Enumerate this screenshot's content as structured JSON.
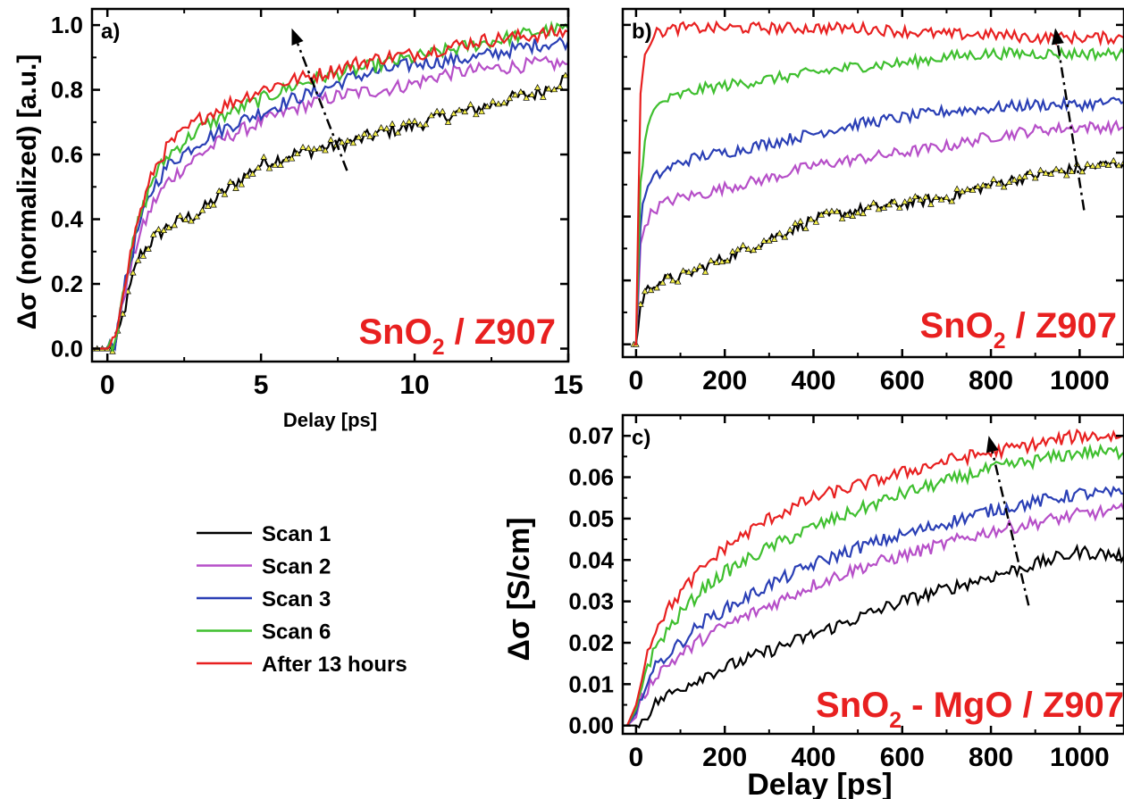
{
  "chart_data": [
    {
      "type": "line",
      "panel_label": "a)",
      "xlabel": "Delay [ps]",
      "ylabel": "Δσ  (normalized) [a.u.]",
      "xlim": [
        -0.5,
        15
      ],
      "ylim": [
        -0.04,
        1.05
      ],
      "xticks": [
        0,
        5,
        10,
        15
      ],
      "yticks": [
        0.0,
        0.2,
        0.4,
        0.6,
        0.8,
        1.0
      ],
      "xtick_labels": [
        "0",
        "5",
        "10",
        "15"
      ],
      "ytick_labels": [
        "0.0",
        "0.2",
        "0.4",
        "0.6",
        "0.8",
        "1.0"
      ],
      "annotation": {
        "main": "SnO",
        "sub": "2",
        "rest": " / Z907"
      },
      "arrow": {
        "from": [
          7.8,
          0.55
        ],
        "to": [
          6.0,
          0.99
        ]
      },
      "x": [
        -0.5,
        0,
        0.25,
        0.5,
        1,
        1.5,
        2,
        3,
        4,
        5,
        6,
        7,
        8,
        9,
        10,
        11,
        12,
        13,
        14,
        15
      ],
      "series": [
        {
          "name": "Scan 1",
          "color": "#000000",
          "markers": true,
          "values": [
            0.0,
            0.0,
            0.0,
            0.1,
            0.28,
            0.34,
            0.38,
            0.42,
            0.5,
            0.57,
            0.6,
            0.62,
            0.64,
            0.67,
            0.69,
            0.72,
            0.74,
            0.77,
            0.79,
            0.84
          ]
        },
        {
          "name": "Scan 2",
          "color": "#b64fc8",
          "markers": false,
          "values": [
            0.0,
            0.0,
            0.02,
            0.15,
            0.34,
            0.45,
            0.52,
            0.6,
            0.66,
            0.7,
            0.74,
            0.77,
            0.79,
            0.8,
            0.82,
            0.85,
            0.86,
            0.87,
            0.88,
            0.88
          ]
        },
        {
          "name": "Scan 3",
          "color": "#2a3fb5",
          "markers": false,
          "values": [
            0.0,
            0.0,
            0.02,
            0.17,
            0.37,
            0.5,
            0.57,
            0.64,
            0.69,
            0.73,
            0.77,
            0.8,
            0.84,
            0.86,
            0.88,
            0.89,
            0.9,
            0.92,
            0.94,
            0.95
          ]
        },
        {
          "name": "Scan 6",
          "color": "#3fbf2f",
          "markers": false,
          "values": [
            0.0,
            0.0,
            0.02,
            0.18,
            0.39,
            0.53,
            0.6,
            0.68,
            0.73,
            0.77,
            0.81,
            0.84,
            0.86,
            0.88,
            0.9,
            0.92,
            0.94,
            0.96,
            0.98,
            0.99
          ]
        },
        {
          "name": "After 13 hours",
          "color": "#e82020",
          "markers": false,
          "values": [
            0.0,
            0.0,
            0.02,
            0.18,
            0.4,
            0.55,
            0.63,
            0.71,
            0.76,
            0.8,
            0.83,
            0.85,
            0.88,
            0.9,
            0.91,
            0.93,
            0.95,
            0.96,
            0.97,
            0.98
          ]
        }
      ]
    },
    {
      "type": "line",
      "panel_label": "b)",
      "xlabel": "",
      "ylabel": "",
      "xlim": [
        -30,
        1100
      ],
      "ylim": [
        -0.04,
        1.05
      ],
      "xticks": [
        0,
        200,
        400,
        600,
        800,
        1000
      ],
      "xtick_labels": [
        "0",
        "200",
        "400",
        "600",
        "800",
        "1000"
      ],
      "annotation": {
        "main": "SnO",
        "sub": "2",
        "rest": " / Z907"
      },
      "arrow": {
        "from": [
          1010,
          0.42
        ],
        "to": [
          945,
          0.99
        ]
      },
      "x": [
        -5,
        0,
        10,
        20,
        40,
        60,
        100,
        150,
        200,
        300,
        400,
        500,
        600,
        700,
        800,
        900,
        1000,
        1100
      ],
      "series": [
        {
          "name": "Scan 1",
          "color": "#000000",
          "markers": true,
          "values": [
            0.0,
            0.0,
            0.12,
            0.16,
            0.19,
            0.2,
            0.21,
            0.24,
            0.27,
            0.33,
            0.39,
            0.42,
            0.44,
            0.46,
            0.5,
            0.53,
            0.55,
            0.57
          ]
        },
        {
          "name": "Scan 2",
          "color": "#b64fc8",
          "markers": false,
          "values": [
            0.0,
            0.0,
            0.3,
            0.38,
            0.42,
            0.44,
            0.46,
            0.47,
            0.49,
            0.52,
            0.56,
            0.58,
            0.6,
            0.62,
            0.65,
            0.67,
            0.68,
            0.68
          ]
        },
        {
          "name": "Scan 3",
          "color": "#2a3fb5",
          "markers": false,
          "values": [
            0.0,
            0.0,
            0.38,
            0.47,
            0.52,
            0.54,
            0.57,
            0.59,
            0.6,
            0.63,
            0.66,
            0.69,
            0.71,
            0.73,
            0.74,
            0.75,
            0.75,
            0.76
          ]
        },
        {
          "name": "Scan 6",
          "color": "#3fbf2f",
          "markers": false,
          "values": [
            0.0,
            0.0,
            0.5,
            0.65,
            0.73,
            0.76,
            0.78,
            0.8,
            0.81,
            0.83,
            0.85,
            0.87,
            0.88,
            0.9,
            0.91,
            0.91,
            0.91,
            0.91
          ]
        },
        {
          "name": "After 13 hours",
          "color": "#e82020",
          "markers": false,
          "values": [
            0.0,
            0.0,
            0.8,
            0.92,
            0.97,
            0.98,
            0.99,
            0.99,
            0.99,
            0.99,
            0.99,
            0.99,
            0.98,
            0.97,
            0.97,
            0.96,
            0.96,
            0.96
          ]
        }
      ]
    },
    {
      "type": "line",
      "panel_label": "c)",
      "xlabel": "Delay [ps]",
      "ylabel": "Δσ [S/cm]",
      "xlim": [
        -30,
        1100
      ],
      "ylim": [
        -0.002,
        0.075
      ],
      "xticks": [
        0,
        200,
        400,
        600,
        800,
        1000
      ],
      "yticks": [
        0.0,
        0.01,
        0.02,
        0.03,
        0.04,
        0.05,
        0.06,
        0.07
      ],
      "xtick_labels": [
        "0",
        "200",
        "400",
        "600",
        "800",
        "1000"
      ],
      "ytick_labels": [
        "0.00",
        "0.01",
        "0.02",
        "0.03",
        "0.04",
        "0.05",
        "0.06",
        "0.07"
      ],
      "annotation": {
        "main": "SnO",
        "sub": "2",
        "rest": " - MgO / Z907"
      },
      "arrow": {
        "from": [
          885,
          0.029
        ],
        "to": [
          795,
          0.07
        ]
      },
      "x": [
        -20,
        0,
        20,
        50,
        100,
        150,
        200,
        300,
        400,
        500,
        600,
        700,
        800,
        900,
        1000,
        1100
      ],
      "series": [
        {
          "name": "Scan 1",
          "color": "#000000",
          "markers": false,
          "values": [
            0.0,
            0.0,
            0.002,
            0.006,
            0.009,
            0.012,
            0.014,
            0.018,
            0.022,
            0.026,
            0.03,
            0.033,
            0.036,
            0.039,
            0.042,
            0.041
          ]
        },
        {
          "name": "Scan 2",
          "color": "#b64fc8",
          "markers": false,
          "values": [
            0.0,
            0.002,
            0.008,
            0.013,
            0.017,
            0.021,
            0.024,
            0.029,
            0.034,
            0.038,
            0.041,
            0.044,
            0.047,
            0.049,
            0.051,
            0.052
          ]
        },
        {
          "name": "Scan 3",
          "color": "#2a3fb5",
          "markers": false,
          "values": [
            0.0,
            0.003,
            0.01,
            0.015,
            0.02,
            0.025,
            0.028,
            0.034,
            0.039,
            0.043,
            0.046,
            0.049,
            0.052,
            0.054,
            0.056,
            0.056
          ]
        },
        {
          "name": "Scan 6",
          "color": "#3fbf2f",
          "markers": false,
          "values": [
            0.0,
            0.004,
            0.013,
            0.02,
            0.027,
            0.033,
            0.037,
            0.043,
            0.048,
            0.052,
            0.056,
            0.059,
            0.062,
            0.064,
            0.066,
            0.066
          ]
        },
        {
          "name": "After 13 hours",
          "color": "#e82020",
          "markers": false,
          "values": [
            0.0,
            0.005,
            0.016,
            0.025,
            0.032,
            0.038,
            0.043,
            0.05,
            0.055,
            0.058,
            0.061,
            0.064,
            0.066,
            0.068,
            0.07,
            0.07
          ]
        }
      ]
    }
  ],
  "legend": [
    {
      "label": "Scan 1",
      "color": "#000000"
    },
    {
      "label": "Scan 2",
      "color": "#b64fc8"
    },
    {
      "label": "Scan 3",
      "color": "#2a3fb5"
    },
    {
      "label": "Scan 6",
      "color": "#3fbf2f"
    },
    {
      "label": "After 13 hours",
      "color": "#e82020"
    }
  ]
}
